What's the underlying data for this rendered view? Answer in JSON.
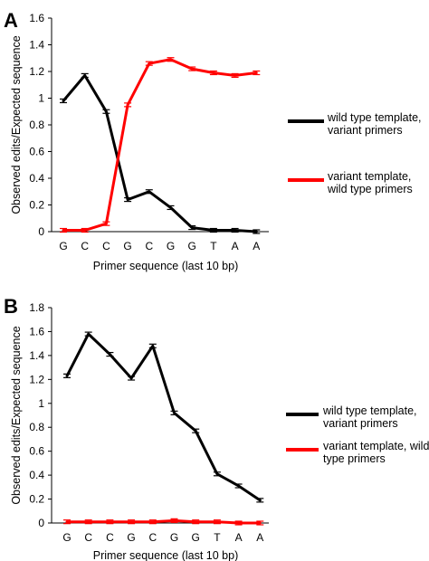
{
  "chart_data": [
    {
      "panel": "A",
      "type": "line",
      "categories": [
        "G",
        "C",
        "C",
        "G",
        "C",
        "G",
        "G",
        "T",
        "A",
        "A"
      ],
      "xlabel": "Primer sequence (last 10 bp)",
      "ylabel": "Observed edits/Expected sequence",
      "ylim": [
        0,
        1.6
      ],
      "yticks": [
        "0",
        "0.2",
        "0.4",
        "0.6",
        "0.8",
        "1",
        "1.2",
        "1.4",
        "1.6"
      ],
      "grid": false,
      "legend_position": "right",
      "series": [
        {
          "name": "wild type template, variant primers",
          "name_lines": [
            "wild type template,",
            "variant primers"
          ],
          "color": "#000000",
          "values": [
            0.98,
            1.17,
            0.9,
            0.24,
            0.3,
            0.18,
            0.03,
            0.01,
            0.01,
            0.0
          ]
        },
        {
          "name": "variant template, wild type primers",
          "name_lines": [
            "variant template,",
            "wild type primers"
          ],
          "color": "#ff0000",
          "values": [
            0.01,
            0.01,
            0.06,
            0.95,
            1.26,
            1.29,
            1.22,
            1.19,
            1.17,
            1.19
          ]
        }
      ]
    },
    {
      "panel": "B",
      "type": "line",
      "categories": [
        "G",
        "C",
        "C",
        "G",
        "C",
        "G",
        "G",
        "T",
        "A",
        "A"
      ],
      "xlabel": "Primer sequence (last 10 bp)",
      "ylabel": "Observed edits/Expected sequence",
      "ylim": [
        0,
        1.8
      ],
      "yticks": [
        "0",
        "0.2",
        "0.4",
        "0.6",
        "0.8",
        "1",
        "1.2",
        "1.4",
        "1.6",
        "1.8"
      ],
      "grid": false,
      "legend_position": "right",
      "series": [
        {
          "name": "wild type template, variant primers",
          "name_lines": [
            "wild type template,",
            "variant primers"
          ],
          "color": "#000000",
          "values": [
            1.23,
            1.58,
            1.41,
            1.21,
            1.48,
            0.92,
            0.77,
            0.41,
            0.31,
            0.19
          ]
        },
        {
          "name": "variant template, wild type primers",
          "name_lines": [
            "variant template, wild",
            "type primers"
          ],
          "color": "#ff0000",
          "values": [
            0.01,
            0.01,
            0.01,
            0.01,
            0.01,
            0.02,
            0.01,
            0.01,
            0.0,
            0.0
          ]
        }
      ]
    }
  ]
}
